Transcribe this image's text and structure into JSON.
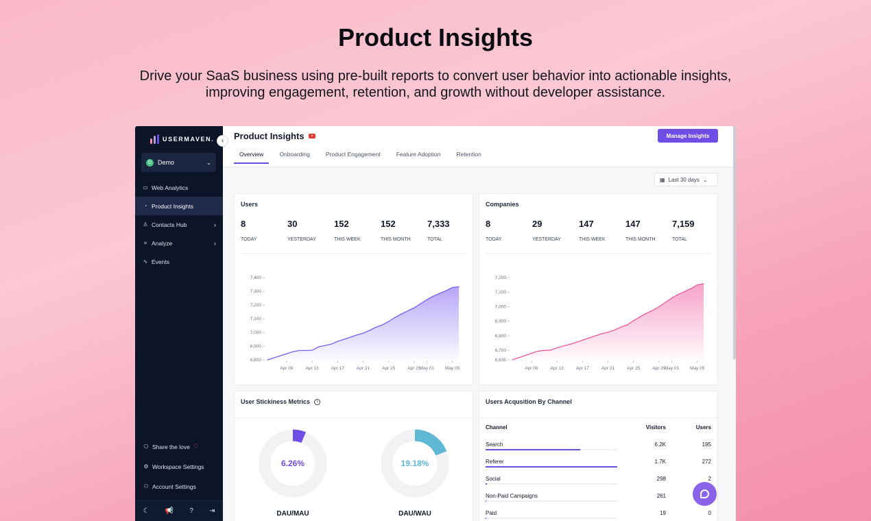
{
  "hero": {
    "title": "Product Insights",
    "subtitle": "Drive your SaaS business using pre-built reports to convert user behavior into actionable insights, improving engagement, retention, and growth without developer assistance."
  },
  "sidebar": {
    "logo_text": "USERMAVEN.",
    "collapse_icon": "‹",
    "workspace": {
      "initial": "D",
      "name": "Demo"
    },
    "items": [
      {
        "label": "Web Analytics",
        "icon": "▭",
        "has_chevron": false,
        "active": false
      },
      {
        "label": "Product Insights",
        "icon": "◔",
        "has_chevron": false,
        "active": true
      },
      {
        "label": "Contacts Hub",
        "icon": "♙",
        "has_chevron": true,
        "active": false
      },
      {
        "label": "Analyze",
        "icon": "⌗",
        "has_chevron": true,
        "active": false
      },
      {
        "label": "Events",
        "icon": "∿",
        "has_chevron": false,
        "active": false
      }
    ],
    "bottom_items": [
      {
        "label": "Share the love",
        "icon": "⎔"
      },
      {
        "label": "Workspace Settings",
        "icon": "⚙"
      },
      {
        "label": "Account Settings",
        "icon": "⚇"
      }
    ],
    "footer_icons": [
      "☾",
      "📢",
      "?",
      "⇥"
    ]
  },
  "header": {
    "title": "Product Insights",
    "manage_button": "Manage Insights",
    "tabs": [
      "Overview",
      "Onboarding",
      "Product Engagement",
      "Feature Adoption",
      "Retention"
    ],
    "active_tab": 0,
    "date_range": "Last 30 days"
  },
  "users_card": {
    "title": "Users",
    "kpis": [
      {
        "value": "8",
        "label": "TODAY"
      },
      {
        "value": "30",
        "label": "YESTERDAY"
      },
      {
        "value": "152",
        "label": "THIS WEEK"
      },
      {
        "value": "152",
        "label": "THIS MONTH"
      },
      {
        "value": "7,333",
        "label": "TOTAL"
      }
    ]
  },
  "companies_card": {
    "title": "Companies",
    "kpis": [
      {
        "value": "8",
        "label": "TODAY"
      },
      {
        "value": "29",
        "label": "YESTERDAY"
      },
      {
        "value": "147",
        "label": "THIS WEEK"
      },
      {
        "value": "147",
        "label": "THIS MONTH"
      },
      {
        "value": "7,159",
        "label": "TOTAL"
      }
    ]
  },
  "chart_data": [
    {
      "type": "area",
      "x_ticks": [
        "Apr 09",
        "Apr 13",
        "Apr 17",
        "Apr 21",
        "Apr 25",
        "Apr 29",
        "May 01",
        "May 05"
      ],
      "y_ticks": [
        6800,
        6900,
        7000,
        7100,
        7200,
        7300,
        7400
      ],
      "y_tick_labels": [
        "6,800",
        "6,900",
        "7,000",
        "7,100",
        "7,200",
        "7,300",
        "7,400"
      ],
      "ylim": [
        6800,
        7400
      ],
      "x": [
        "Apr 06",
        "Apr 07",
        "Apr 08",
        "Apr 09",
        "Apr 10",
        "Apr 11",
        "Apr 12",
        "Apr 13",
        "Apr 14",
        "Apr 15",
        "Apr 16",
        "Apr 17",
        "Apr 18",
        "Apr 19",
        "Apr 20",
        "Apr 21",
        "Apr 22",
        "Apr 23",
        "Apr 24",
        "Apr 25",
        "Apr 26",
        "Apr 27",
        "Apr 28",
        "Apr 29",
        "Apr 30",
        "May 01",
        "May 02",
        "May 03",
        "May 04",
        "May 05",
        "May 06"
      ],
      "values": [
        6800,
        6815,
        6830,
        6845,
        6860,
        6868,
        6868,
        6870,
        6895,
        6905,
        6915,
        6935,
        6950,
        6965,
        6982,
        6995,
        7015,
        7038,
        7055,
        7080,
        7110,
        7135,
        7158,
        7180,
        7210,
        7240,
        7265,
        7285,
        7305,
        7328,
        7333
      ],
      "color": "#7b5cf0"
    },
    {
      "type": "area",
      "x_ticks": [
        "Apr 09",
        "Apr 13",
        "Apr 17",
        "Apr 21",
        "Apr 25",
        "Apr 29",
        "May 01",
        "May 05"
      ],
      "y_ticks": [
        6635,
        6700,
        6800,
        6900,
        7000,
        7100,
        7200
      ],
      "y_tick_labels": [
        "6,635",
        "6,700",
        "6,800",
        "6,900",
        "7,000",
        "7,100",
        "7,200"
      ],
      "ylim": [
        6635,
        7200
      ],
      "x": [
        "Apr 06",
        "Apr 07",
        "Apr 08",
        "Apr 09",
        "Apr 10",
        "Apr 11",
        "Apr 12",
        "Apr 13",
        "Apr 14",
        "Apr 15",
        "Apr 16",
        "Apr 17",
        "Apr 18",
        "Apr 19",
        "Apr 20",
        "Apr 21",
        "Apr 22",
        "Apr 23",
        "Apr 24",
        "Apr 25",
        "Apr 26",
        "Apr 27",
        "Apr 28",
        "Apr 29",
        "Apr 30",
        "May 01",
        "May 02",
        "May 03",
        "May 04",
        "May 05",
        "May 06"
      ],
      "values": [
        6635,
        6650,
        6665,
        6680,
        6695,
        6700,
        6702,
        6718,
        6730,
        6742,
        6755,
        6770,
        6785,
        6800,
        6815,
        6825,
        6840,
        6860,
        6875,
        6905,
        6930,
        6955,
        6975,
        7000,
        7030,
        7060,
        7085,
        7105,
        7125,
        7150,
        7159
      ],
      "color": "#ee5a9c"
    }
  ],
  "stickiness": {
    "title": "User Stickiness Metrics",
    "donuts": [
      {
        "value": 6.26,
        "display": "6.26%",
        "label": "DAU/MAU",
        "color": "#6f4ee6"
      },
      {
        "value": 19.18,
        "display": "19.18%",
        "label": "DAU/WAU",
        "color": "#5fb7d6"
      }
    ]
  },
  "acquisition": {
    "title": "Users Acqusition By Channel",
    "columns": [
      "Channel",
      "Visitors",
      "Users"
    ],
    "rows": [
      {
        "channel": "Search",
        "visitors": "6.2K",
        "users": "195",
        "share": 0.72
      },
      {
        "channel": "Referer",
        "visitors": "1.7K",
        "users": "272",
        "share": 1.0
      },
      {
        "channel": "Social",
        "visitors": "298",
        "users": "2",
        "share": 0.01
      },
      {
        "channel": "Non-Paid Campaigns",
        "visitors": "261",
        "users": "",
        "share": 0.005
      },
      {
        "channel": "Paid",
        "visitors": "19",
        "users": "0",
        "share": 0.0
      }
    ]
  }
}
